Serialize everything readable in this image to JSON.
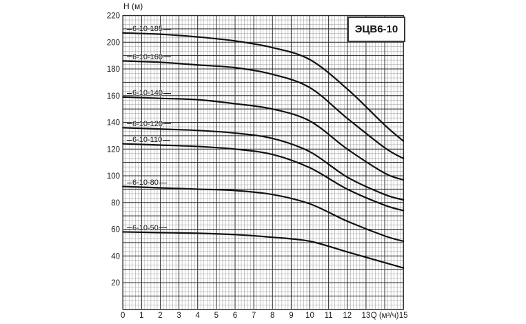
{
  "axes": {
    "y_caption": "Н (м)",
    "x_caption": "Q (м³/ч)",
    "x_caption_tick_index": 14
  },
  "colors": {
    "background": "#ffffff",
    "grid_minor": "#9b9b9b",
    "grid_major": "#2a2a2a",
    "curve": "#111111",
    "text": "#1a1a1a",
    "title_border": "#3a3a3a"
  },
  "chart_data": {
    "type": "line",
    "title": "ЭЦВ6-10",
    "xlabel": "Q (м³/ч)",
    "ylabel": "Н (м)",
    "xlim": [
      0,
      15
    ],
    "ylim": [
      0,
      220
    ],
    "grid": "on",
    "x_major_step": 1,
    "y_major_step": 10,
    "x_minor_per_unit": 6,
    "y_minor_per_10": 3,
    "x_tick_labels": [
      "0",
      "1",
      "2",
      "3",
      "4",
      "5",
      "6",
      "7",
      "8",
      "9",
      "10",
      "11",
      "12",
      "13",
      "Q (м³/ч)",
      "15"
    ],
    "y_tick_labels": [
      "20",
      "40",
      "60",
      "80",
      "100",
      "120",
      "140",
      "160",
      "180",
      "200",
      "220"
    ],
    "y_tick_values": [
      20,
      40,
      60,
      80,
      100,
      120,
      140,
      160,
      180,
      200,
      220
    ],
    "x": [
      0,
      2,
      4,
      6,
      8,
      10,
      12,
      14,
      15
    ],
    "series": [
      {
        "name": "6-10-185",
        "values": [
          207,
          206,
          204,
          201,
          196,
          187,
          165,
          138,
          126
        ]
      },
      {
        "name": "6-10-160",
        "values": [
          186,
          185,
          183,
          181,
          176,
          166,
          143,
          121,
          113
        ]
      },
      {
        "name": "6-10-140",
        "values": [
          159,
          158,
          157,
          154,
          150,
          141,
          120,
          102,
          97
        ]
      },
      {
        "name": "6-10-120",
        "values": [
          136,
          135,
          134,
          132,
          128,
          118,
          99,
          86,
          82
        ]
      },
      {
        "name": "6-10-110",
        "values": [
          124,
          123,
          122,
          120,
          116,
          106,
          90,
          78,
          74
        ]
      },
      {
        "name": "6-10-80",
        "values": [
          92,
          91,
          90,
          89,
          86,
          79,
          66,
          55,
          51
        ]
      },
      {
        "name": "6-10-50",
        "values": [
          58,
          57.5,
          57,
          56,
          54,
          51,
          43,
          35,
          31
        ]
      }
    ],
    "legend_position": "labels-on-curves"
  }
}
